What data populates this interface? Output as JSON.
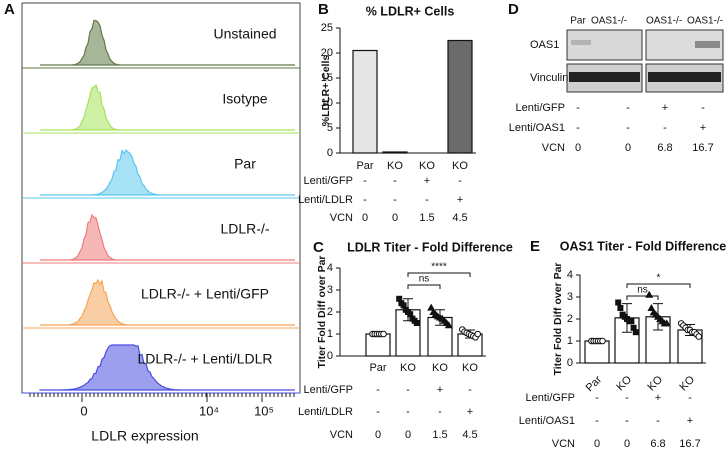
{
  "panels": {
    "a": {
      "letter": "A",
      "samples": [
        {
          "label": "Unstained",
          "color": "#5e7a45"
        },
        {
          "label": "Isotype",
          "color": "#a6e35a"
        },
        {
          "label": "Par",
          "color": "#5cc8ef"
        },
        {
          "label": "LDLR-/-",
          "color": "#ee7b7b"
        },
        {
          "label": "LDLR-/- + Lenti/GFP",
          "color": "#f5a55a"
        },
        {
          "label": "LDLR-/- + Lenti/LDLR",
          "color": "#4a4ee0"
        }
      ],
      "xtick_labels": [
        "0",
        "10⁴",
        "10⁵"
      ],
      "x_label": "LDLR expression"
    },
    "b": {
      "type": "bar",
      "letter": "B",
      "title": "% LDLR+ Cells",
      "y_label": "%LDLR+ Cells",
      "categories": [
        "Par",
        "KO",
        "KO",
        "KO"
      ],
      "values": [
        20.5,
        0.2,
        0,
        22.5
      ],
      "colors": [
        "#e6e6e6",
        "#bdbdbd",
        "#9a9a9a",
        "#6b6b6b"
      ],
      "ylim": [
        0,
        25
      ],
      "yticks": [
        0,
        5,
        10,
        15,
        20,
        25
      ],
      "table": [
        {
          "label": "Lenti/GFP",
          "values": [
            "-",
            "-",
            "+",
            "-"
          ]
        },
        {
          "label": "Lenti/LDLR",
          "values": [
            "-",
            "-",
            "-",
            "+"
          ]
        },
        {
          "label": "VCN",
          "values": [
            0,
            0,
            1.5,
            4.5
          ]
        }
      ]
    },
    "c": {
      "type": "bar",
      "letter": "C",
      "title": "LDLR Titer -  Fold Difference",
      "y_label": "Titer Fold Diff over Par",
      "categories": [
        "Par",
        "KO",
        "KO",
        "KO"
      ],
      "values": [
        1.0,
        2.1,
        1.75,
        1.0
      ],
      "errors": [
        0.03,
        0.5,
        0.35,
        0.18
      ],
      "points": [
        [
          1,
          1,
          1,
          1,
          1,
          1
        ],
        [
          2.6,
          2.4,
          2.3,
          2.1,
          2.0,
          1.9,
          1.7,
          1.6,
          1.5
        ],
        [
          2.2,
          2.0,
          1.9,
          1.8,
          1.75,
          1.7,
          1.6,
          1.5,
          1.4
        ],
        [
          1.2,
          1.1,
          1.05,
          1.0,
          0.95,
          0.9,
          0.85,
          1.0
        ]
      ],
      "markers": [
        "circle",
        "square",
        "triangle",
        "circle"
      ],
      "color": "#ffffff",
      "ylim": [
        0,
        4
      ],
      "yticks": [
        0,
        1,
        2,
        3,
        4
      ],
      "annotations": [
        "ns",
        "****"
      ],
      "table": [
        {
          "label": "Lenti/GFP",
          "values": [
            "-",
            "-",
            "+",
            "-"
          ]
        },
        {
          "label": "Lenti/LDLR",
          "values": [
            "-",
            "-",
            "-",
            "+"
          ]
        },
        {
          "label": "VCN",
          "values": [
            0,
            0,
            1.5,
            4.5
          ]
        }
      ]
    },
    "d": {
      "letter": "D",
      "headers": [
        "Par",
        "OAS1-/-",
        "OAS1-/-",
        "OAS1-/-"
      ],
      "rows": [
        "OAS1",
        "Vinculin"
      ],
      "table": [
        {
          "label": "Lenti/GFP",
          "values": [
            "-",
            "-",
            "+",
            "-"
          ]
        },
        {
          "label": "Lenti/OAS1",
          "values": [
            "-",
            "-",
            "-",
            "+"
          ]
        },
        {
          "label": "VCN",
          "values": [
            0,
            0,
            6.8,
            16.7
          ]
        }
      ]
    },
    "e": {
      "type": "bar",
      "letter": "E",
      "title": "OAS1 Titer -  Fold Difference",
      "y_label": "Titer Fold Diff over Par",
      "categories": [
        "Par",
        "KO",
        "KO",
        "KO"
      ],
      "values": [
        1.0,
        2.05,
        2.1,
        1.5
      ],
      "errors": [
        0.03,
        0.65,
        0.6,
        0.25
      ],
      "points": [
        [
          1,
          1,
          1,
          1,
          1,
          1
        ],
        [
          2.75,
          2.5,
          2.2,
          2.1,
          2.0,
          1.9,
          1.9,
          1.6,
          1.4
        ],
        [
          3.1,
          2.5,
          2.3,
          2.2,
          2.1,
          2.0,
          1.9,
          1.8,
          1.8
        ],
        [
          1.8,
          1.7,
          1.6,
          1.5,
          1.5,
          1.4,
          1.4,
          1.3,
          1.2
        ]
      ],
      "markers": [
        "circle",
        "square",
        "triangle",
        "circle"
      ],
      "color": "#ffffff",
      "ylim": [
        0,
        4
      ],
      "yticks": [
        0,
        1,
        2,
        3,
        4
      ],
      "annotations": [
        "ns",
        "*"
      ],
      "table": [
        {
          "label": "Lenti/GFP",
          "values": [
            "-",
            "-",
            "+",
            "-"
          ]
        },
        {
          "label": "Lenti/OAS1",
          "values": [
            "-",
            "-",
            "-",
            "+"
          ]
        },
        {
          "label": "VCN",
          "values": [
            0,
            0,
            6.8,
            16.7
          ]
        }
      ]
    }
  }
}
